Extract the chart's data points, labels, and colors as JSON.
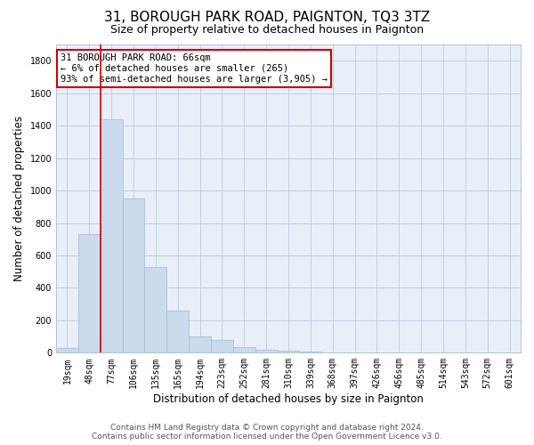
{
  "title": "31, BOROUGH PARK ROAD, PAIGNTON, TQ3 3TZ",
  "subtitle": "Size of property relative to detached houses in Paignton",
  "xlabel": "Distribution of detached houses by size in Paignton",
  "ylabel": "Number of detached properties",
  "categories": [
    "19sqm",
    "48sqm",
    "77sqm",
    "106sqm",
    "135sqm",
    "165sqm",
    "194sqm",
    "223sqm",
    "252sqm",
    "281sqm",
    "310sqm",
    "339sqm",
    "368sqm",
    "397sqm",
    "426sqm",
    "456sqm",
    "485sqm",
    "514sqm",
    "543sqm",
    "572sqm",
    "601sqm"
  ],
  "values": [
    30,
    730,
    1440,
    950,
    530,
    260,
    100,
    80,
    35,
    20,
    15,
    5,
    2,
    2,
    1,
    1,
    1,
    1,
    1,
    1,
    1
  ],
  "bar_color": "#ccdaed",
  "bar_edge_color": "#a8bfd8",
  "annotation_text": "31 BOROUGH PARK ROAD: 66sqm\n← 6% of detached houses are smaller (265)\n93% of semi-detached houses are larger (3,905) →",
  "annotation_box_color": "#ffffff",
  "annotation_box_edge_color": "#cc0000",
  "red_line_x": 1.5,
  "ylim": [
    0,
    1900
  ],
  "yticks": [
    0,
    200,
    400,
    600,
    800,
    1000,
    1200,
    1400,
    1600,
    1800
  ],
  "footer_line1": "Contains HM Land Registry data © Crown copyright and database right 2024.",
  "footer_line2": "Contains public sector information licensed under the Open Government Licence v3.0.",
  "bg_color": "#ffffff",
  "plot_bg_color": "#e8eff8",
  "grid_color": "#c0d0e0",
  "title_fontsize": 11,
  "subtitle_fontsize": 9,
  "axis_label_fontsize": 8.5,
  "tick_fontsize": 7,
  "annotation_fontsize": 7.5,
  "footer_fontsize": 6.5
}
